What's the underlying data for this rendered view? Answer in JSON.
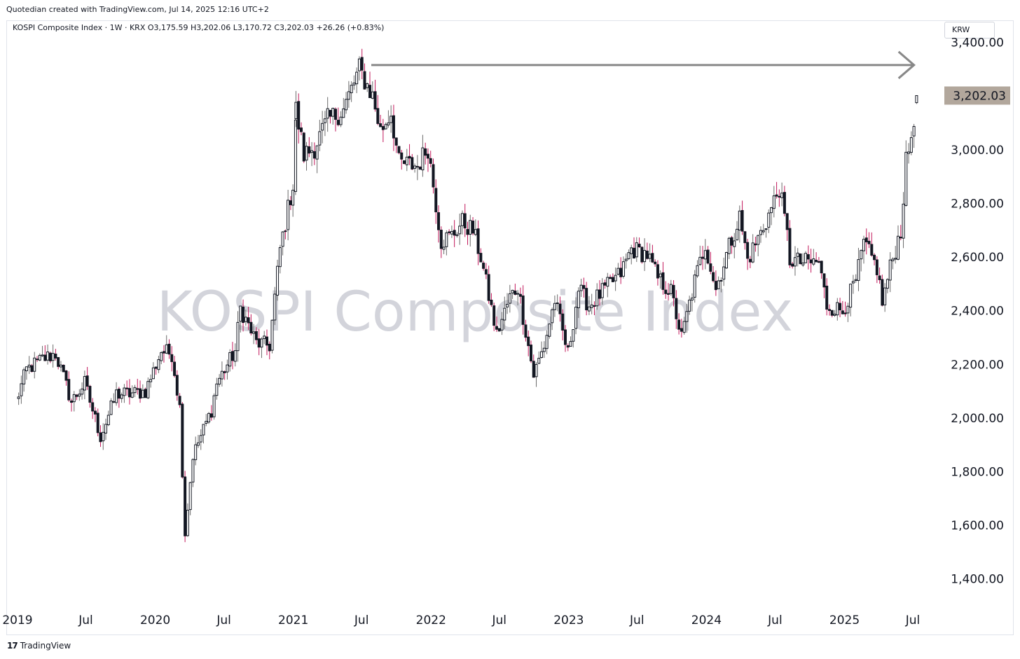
{
  "header": {
    "attribution": "Quotedian created with TradingView.com, Jul 14, 2025 12:16 UTC+2",
    "legend": "KOSPI Composite Index · 1W · KRX  O3,175.59  H3,202.06  L3,170.72  C3,202.03  +26.26 (+0.83%)",
    "currency": "KRW"
  },
  "footer": {
    "logo_icon": "tradingview-logo-icon",
    "logo_mark": "17",
    "brand": "TradingView"
  },
  "colors": {
    "up": "#131722",
    "down": "#c2185b",
    "wick_up": "#6b6b6b",
    "arrow": "#888888",
    "price_label_bg": "#b2a79c"
  },
  "chart_data": {
    "type": "candlestick",
    "title": "KOSPI Composite Index",
    "watermark": "KOSPI Composite Index",
    "interval": "1W",
    "exchange": "KRX",
    "ylim": [
      1300,
      3480
    ],
    "y_ticks": [
      {
        "value": 3400,
        "label": "3,400.00"
      },
      {
        "value": 3000,
        "label": "3,000.00"
      },
      {
        "value": 2800,
        "label": "2,800.00"
      },
      {
        "value": 2600,
        "label": "2,600.00"
      },
      {
        "value": 2400,
        "label": "2,400.00"
      },
      {
        "value": 2200,
        "label": "2,200.00"
      },
      {
        "value": 2000,
        "label": "2,000.00"
      },
      {
        "value": 1800,
        "label": "1,800.00"
      },
      {
        "value": 1600,
        "label": "1,600.00"
      },
      {
        "value": 1400,
        "label": "1,400.00"
      }
    ],
    "x_ticks": [
      {
        "date": "2019-01",
        "label": "2019"
      },
      {
        "date": "2019-07",
        "label": "Jul"
      },
      {
        "date": "2020-01",
        "label": "2020"
      },
      {
        "date": "2020-07",
        "label": "Jul"
      },
      {
        "date": "2021-01",
        "label": "2021"
      },
      {
        "date": "2021-07",
        "label": "Jul"
      },
      {
        "date": "2022-01",
        "label": "2022"
      },
      {
        "date": "2022-07",
        "label": "Jul"
      },
      {
        "date": "2023-01",
        "label": "2023"
      },
      {
        "date": "2023-07",
        "label": "Jul"
      },
      {
        "date": "2024-01",
        "label": "2024"
      },
      {
        "date": "2024-07",
        "label": "Jul"
      },
      {
        "date": "2025-01",
        "label": "2025"
      },
      {
        "date": "2025-07",
        "label": "Jul"
      }
    ],
    "last_price": {
      "value": 3202.03,
      "label": "3,202.03"
    },
    "annotation_arrow": {
      "from_date": "2021-06",
      "to_date": "2025-08",
      "level": 3316
    },
    "ohlc": {
      "open": 3175.59,
      "high": 3202.06,
      "low": 3170.72,
      "close": 3202.03,
      "change": 26.26,
      "change_pct": 0.83
    },
    "anchors": [
      [
        "2018-12-28",
        2060
      ],
      [
        "2019-01-25",
        2180
      ],
      [
        "2019-03-08",
        2220
      ],
      [
        "2019-04-12",
        2240
      ],
      [
        "2019-05-24",
        2060
      ],
      [
        "2019-06-28",
        2130
      ],
      [
        "2019-08-09",
        1930
      ],
      [
        "2019-09-20",
        2090
      ],
      [
        "2019-10-25",
        2090
      ],
      [
        "2019-12-06",
        2100
      ],
      [
        "2020-01-17",
        2250
      ],
      [
        "2020-02-14",
        2240
      ],
      [
        "2020-03-06",
        2040
      ],
      [
        "2020-03-20",
        1570
      ],
      [
        "2020-04-10",
        1860
      ],
      [
        "2020-05-29",
        2030
      ],
      [
        "2020-06-12",
        2130
      ],
      [
        "2020-07-31",
        2250
      ],
      [
        "2020-08-14",
        2410
      ],
      [
        "2020-09-25",
        2280
      ],
      [
        "2020-10-30",
        2270
      ],
      [
        "2020-11-27",
        2630
      ],
      [
        "2020-12-31",
        2870
      ],
      [
        "2021-01-08",
        3150
      ],
      [
        "2021-01-29",
        2980
      ],
      [
        "2021-02-26",
        3010
      ],
      [
        "2021-04-02",
        3110
      ],
      [
        "2021-05-14",
        3150
      ],
      [
        "2021-06-25",
        3300
      ],
      [
        "2021-07-30",
        3200
      ],
      [
        "2021-08-20",
        3070
      ],
      [
        "2021-09-17",
        3140
      ],
      [
        "2021-10-08",
        2950
      ],
      [
        "2021-11-26",
        2940
      ],
      [
        "2021-12-24",
        3010
      ],
      [
        "2022-01-28",
        2660
      ],
      [
        "2022-02-25",
        2680
      ],
      [
        "2022-03-25",
        2730
      ],
      [
        "2022-04-22",
        2700
      ],
      [
        "2022-05-13",
        2600
      ],
      [
        "2022-06-24",
        2310
      ],
      [
        "2022-07-29",
        2450
      ],
      [
        "2022-08-19",
        2490
      ],
      [
        "2022-09-30",
        2160
      ],
      [
        "2022-10-28",
        2270
      ],
      [
        "2022-11-25",
        2440
      ],
      [
        "2022-12-30",
        2240
      ],
      [
        "2023-01-27",
        2480
      ],
      [
        "2023-02-24",
        2420
      ],
      [
        "2023-03-31",
        2470
      ],
      [
        "2023-05-19",
        2540
      ],
      [
        "2023-06-16",
        2630
      ],
      [
        "2023-07-28",
        2610
      ],
      [
        "2023-08-25",
        2520
      ],
      [
        "2023-09-29",
        2470
      ],
      [
        "2023-10-27",
        2300
      ],
      [
        "2023-12-01",
        2510
      ],
      [
        "2023-12-29",
        2650
      ],
      [
        "2024-01-26",
        2480
      ],
      [
        "2024-03-01",
        2640
      ],
      [
        "2024-03-29",
        2750
      ],
      [
        "2024-04-19",
        2590
      ],
      [
        "2024-05-24",
        2690
      ],
      [
        "2024-06-21",
        2780
      ],
      [
        "2024-07-12",
        2860
      ],
      [
        "2024-08-02",
        2680
      ],
      [
        "2024-08-09",
        2590
      ],
      [
        "2024-09-13",
        2580
      ],
      [
        "2024-10-25",
        2580
      ],
      [
        "2024-11-15",
        2420
      ],
      [
        "2024-12-27",
        2400
      ],
      [
        "2025-01-31",
        2510
      ],
      [
        "2025-02-21",
        2650
      ],
      [
        "2025-03-28",
        2560
      ],
      [
        "2025-04-11",
        2430
      ],
      [
        "2025-05-02",
        2560
      ],
      [
        "2025-05-30",
        2700
      ],
      [
        "2025-06-13",
        2950
      ],
      [
        "2025-06-27",
        3050
      ],
      [
        "2025-07-11",
        3202
      ]
    ]
  }
}
